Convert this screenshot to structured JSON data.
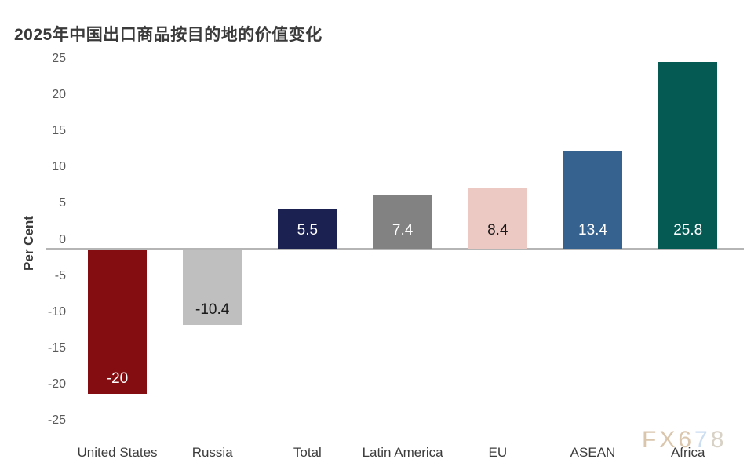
{
  "title": "2025年中国出口商品按目的地的价值变化",
  "chart_data": {
    "type": "bar",
    "title": "2025年中国出口商品按目的地的价值变化",
    "categories": [
      "United States",
      "Russia",
      "Total",
      "Latin America",
      "EU",
      "ASEAN",
      "Africa"
    ],
    "values": [
      -20,
      -10.4,
      5.5,
      7.4,
      8.4,
      13.4,
      25.8
    ],
    "value_labels": [
      "-20",
      "-10.4",
      "5.5",
      "7.4",
      "8.4",
      "13.4",
      "25.8"
    ],
    "bar_colors": [
      "#830d10",
      "#bfbfbf",
      "#1b2150",
      "#828282",
      "#edc9c4",
      "#35628f",
      "#065a54"
    ],
    "value_label_colors": [
      "#ffffff",
      "#1a1a1a",
      "#ffffff",
      "#ffffff",
      "#1a1a1a",
      "#ffffff",
      "#ffffff"
    ],
    "xlabel": "",
    "ylabel": "Per Cent",
    "yticks": [
      25,
      20,
      15,
      10,
      5,
      0,
      -5,
      -10,
      -15,
      -20,
      -25
    ],
    "ylim": [
      -25,
      25
    ],
    "grid": "off",
    "legend": "none",
    "axis_line_color": "#b5b5b5"
  },
  "watermark": {
    "text": "FX678",
    "letters": [
      {
        "ch": "F",
        "color": "#d9c3a9"
      },
      {
        "ch": "X",
        "color": "#d9c3a9"
      },
      {
        "ch": "6",
        "color": "#d9c3a9"
      },
      {
        "ch": "7",
        "color": "#c9dcf0"
      },
      {
        "ch": "8",
        "color": "#d6cfc4"
      }
    ]
  }
}
